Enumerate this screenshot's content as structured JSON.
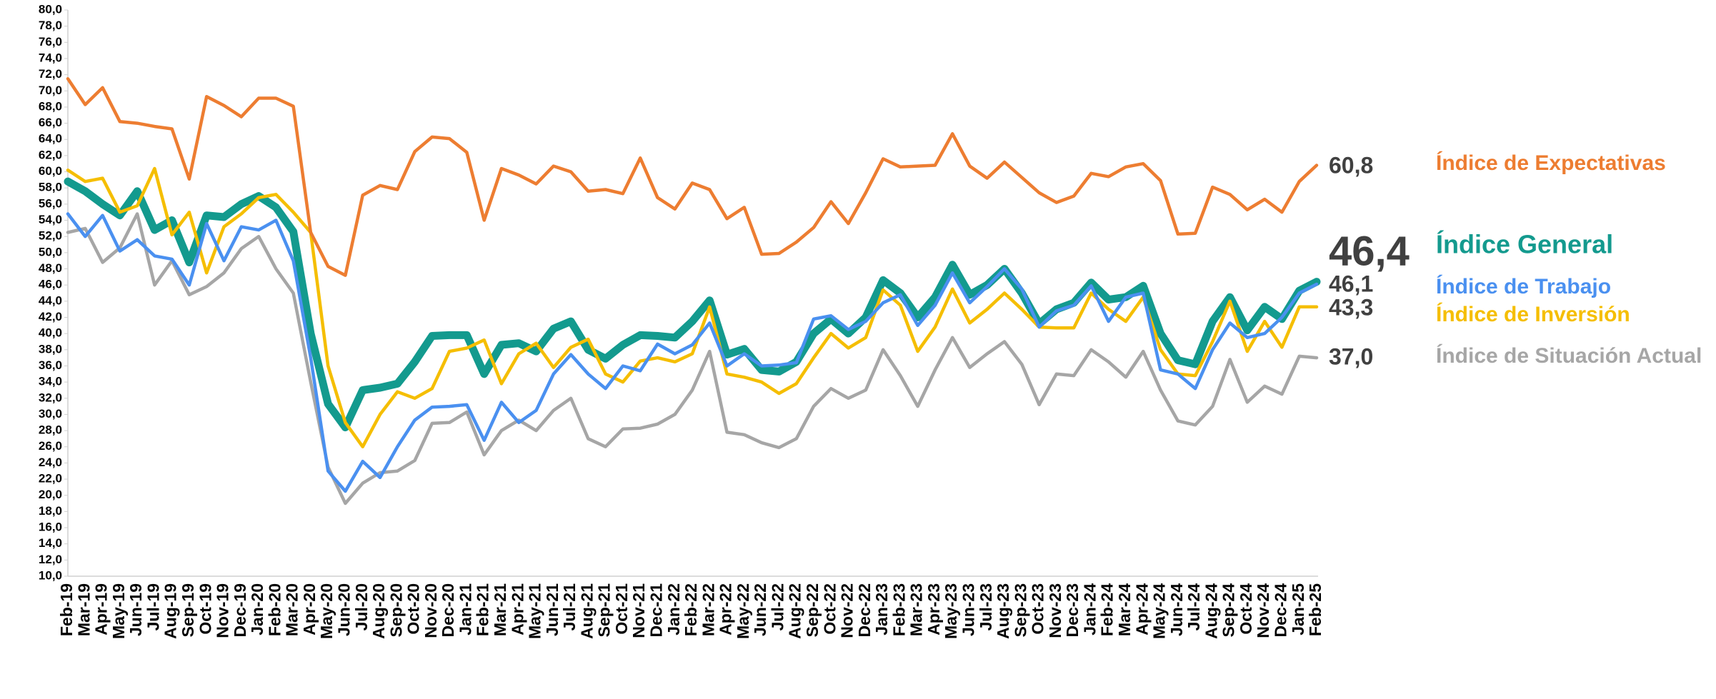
{
  "chart_data": {
    "type": "line",
    "categories": [
      "Feb-19",
      "Mar-19",
      "Apr-19",
      "May-19",
      "Jun-19",
      "Jul-19",
      "Aug-19",
      "Sep-19",
      "Oct-19",
      "Nov-19",
      "Dec-19",
      "Jan-20",
      "Feb-20",
      "Mar-20",
      "Apr-20",
      "May-20",
      "Jun-20",
      "Jul-20",
      "Aug-20",
      "Sep-20",
      "Oct-20",
      "Nov-20",
      "Dec-20",
      "Jan-21",
      "Feb-21",
      "Mar-21",
      "Apr-21",
      "May-21",
      "Jun-21",
      "Jul-21",
      "Aug-21",
      "Sep-21",
      "Oct-21",
      "Nov-21",
      "Dec-21",
      "Jan-22",
      "Feb-22",
      "Mar-22",
      "Apr-22",
      "May-22",
      "Jun-22",
      "Jul-22",
      "Aug-22",
      "Sep-22",
      "Oct-22",
      "Nov-22",
      "Dec-22",
      "Jan-23",
      "Feb-23",
      "Mar-23",
      "Apr-23",
      "May-23",
      "Jun-23",
      "Jul-23",
      "Aug-23",
      "Sep-23",
      "Oct-23",
      "Nov-23",
      "Dec-23",
      "Jan-24",
      "Feb-24",
      "Mar-24",
      "Apr-24",
      "May-24",
      "Jun-24",
      "Jul-24",
      "Aug-24",
      "Sep-24",
      "Oct-24",
      "Nov-24",
      "Dec-24",
      "Jan-25",
      "Feb-25"
    ],
    "series": [
      {
        "name": "Índice de Expectativas",
        "color": "#ED7D31",
        "values": [
          71.5,
          68.3,
          70.4,
          66.2,
          66.0,
          65.6,
          65.3,
          59.1,
          69.3,
          68.2,
          66.8,
          69.1,
          69.1,
          68.1,
          52.5,
          48.3,
          47.2,
          57.1,
          58.3,
          57.8,
          62.5,
          64.3,
          64.1,
          62.4,
          54.0,
          60.4,
          59.6,
          58.5,
          60.7,
          60.0,
          57.6,
          57.8,
          57.3,
          61.7,
          56.8,
          55.4,
          58.6,
          57.8,
          54.2,
          55.6,
          49.8,
          49.9,
          51.3,
          53.1,
          56.3,
          53.6,
          57.4,
          61.6,
          60.6,
          60.7,
          60.8,
          64.7,
          60.7,
          59.2,
          61.2,
          59.3,
          57.4,
          56.2,
          57.0,
          59.8,
          59.4,
          60.6,
          61.0,
          58.9,
          52.3,
          52.4,
          58.1,
          57.2,
          55.3,
          56.6,
          55.0,
          58.8,
          60.8
        ],
        "value_labels": [
          null,
          null,
          null,
          null,
          null,
          null,
          null,
          null,
          null,
          null,
          null,
          null,
          null,
          null,
          null,
          null,
          null,
          null,
          null,
          null,
          null,
          null,
          null,
          null,
          null,
          null,
          null,
          null,
          null,
          null,
          null,
          null,
          null,
          null,
          null,
          null,
          null,
          null,
          null,
          null,
          null,
          null,
          null,
          null,
          null,
          null,
          null,
          null,
          null,
          null,
          null,
          null,
          null,
          null,
          null,
          null,
          null,
          null,
          null,
          null,
          null,
          null,
          null,
          null,
          null,
          null,
          null,
          null,
          null,
          null,
          null,
          null,
          "60,8"
        ]
      },
      {
        "name": "Índice General",
        "color": "#139A8E",
        "values": [
          58.8,
          57.6,
          56.0,
          54.6,
          57.6,
          52.8,
          54.0,
          48.8,
          54.6,
          54.4,
          56.0,
          57.0,
          55.6,
          52.6,
          40.0,
          31.3,
          28.4,
          33.0,
          33.3,
          33.8,
          36.5,
          39.7,
          39.8,
          39.8,
          35.0,
          38.6,
          38.8,
          37.8,
          40.6,
          41.5,
          38.0,
          36.9,
          38.6,
          39.8,
          39.7,
          39.5,
          41.5,
          44.1,
          37.4,
          38.1,
          35.5,
          35.3,
          36.5,
          40.0,
          41.8,
          40.0,
          42.0,
          46.6,
          45.0,
          42.0,
          44.5,
          48.5,
          44.8,
          46.0,
          48.0,
          45.0,
          41.2,
          43.0,
          43.8,
          46.3,
          44.2,
          44.5,
          45.9,
          40.0,
          36.7,
          36.2,
          41.5,
          44.5,
          40.4,
          43.3,
          41.8,
          45.3,
          46.4
        ],
        "value_labels": [
          null,
          null,
          null,
          null,
          null,
          null,
          null,
          null,
          null,
          null,
          null,
          null,
          null,
          null,
          null,
          null,
          null,
          null,
          null,
          null,
          null,
          null,
          null,
          null,
          null,
          null,
          null,
          null,
          null,
          null,
          null,
          null,
          null,
          null,
          null,
          null,
          null,
          null,
          null,
          null,
          null,
          null,
          null,
          null,
          null,
          null,
          null,
          null,
          null,
          null,
          null,
          null,
          null,
          null,
          null,
          null,
          null,
          null,
          null,
          null,
          null,
          null,
          null,
          null,
          null,
          null,
          null,
          null,
          null,
          null,
          null,
          null,
          "46,4"
        ]
      },
      {
        "name": "Índice de Trabajo",
        "color": "#4A90F0",
        "values": [
          54.8,
          52.0,
          54.6,
          50.2,
          51.6,
          49.6,
          49.2,
          46.0,
          53.6,
          49.0,
          53.2,
          52.8,
          54.0,
          49.0,
          37.0,
          23.0,
          20.5,
          24.2,
          22.2,
          26.0,
          29.3,
          30.9,
          31.0,
          31.2,
          26.8,
          31.5,
          29.0,
          30.5,
          35.0,
          37.4,
          35.0,
          33.2,
          36.0,
          35.4,
          38.7,
          37.5,
          38.6,
          41.3,
          36.0,
          37.5,
          36.0,
          36.1,
          36.4,
          41.8,
          42.2,
          40.5,
          41.5,
          43.8,
          44.8,
          41.0,
          43.5,
          47.5,
          43.8,
          45.8,
          48.0,
          45.5,
          40.8,
          42.8,
          43.5,
          45.9,
          41.5,
          44.5,
          45.0,
          35.5,
          35.0,
          33.2,
          38.0,
          41.3,
          39.5,
          40.0,
          42.0,
          45.0,
          46.1
        ],
        "value_labels": [
          null,
          null,
          null,
          null,
          null,
          null,
          null,
          null,
          null,
          null,
          null,
          null,
          null,
          null,
          null,
          null,
          null,
          null,
          null,
          null,
          null,
          null,
          null,
          null,
          null,
          null,
          null,
          null,
          null,
          null,
          null,
          null,
          null,
          null,
          null,
          null,
          null,
          null,
          null,
          null,
          null,
          null,
          null,
          null,
          null,
          null,
          null,
          null,
          null,
          null,
          null,
          null,
          null,
          null,
          null,
          null,
          null,
          null,
          null,
          null,
          null,
          null,
          null,
          null,
          null,
          null,
          null,
          null,
          null,
          null,
          null,
          null,
          "46,1"
        ]
      },
      {
        "name": "Índice de Inversión",
        "color": "#F5BE00",
        "values": [
          60.2,
          58.8,
          59.2,
          55.0,
          55.8,
          60.4,
          52.2,
          55.0,
          47.5,
          53.2,
          54.8,
          56.8,
          57.2,
          55.0,
          52.5,
          36.0,
          29.0,
          26.0,
          30.0,
          32.8,
          32.0,
          33.2,
          37.8,
          38.2,
          39.2,
          33.8,
          37.5,
          38.8,
          35.8,
          38.3,
          39.3,
          35.0,
          34.0,
          36.6,
          37.0,
          36.5,
          37.5,
          43.3,
          35.0,
          34.6,
          34.0,
          32.6,
          33.8,
          37.0,
          40.0,
          38.2,
          39.5,
          45.4,
          43.5,
          37.8,
          40.8,
          45.5,
          41.3,
          43.0,
          45.0,
          43.0,
          40.8,
          40.7,
          40.7,
          45.0,
          43.0,
          41.5,
          44.5,
          38.0,
          35.0,
          34.8,
          39.0,
          44.0,
          37.8,
          41.5,
          38.3,
          43.3,
          43.3
        ],
        "value_labels": [
          null,
          null,
          null,
          null,
          null,
          null,
          null,
          null,
          null,
          null,
          null,
          null,
          null,
          null,
          null,
          null,
          null,
          null,
          null,
          null,
          null,
          null,
          null,
          null,
          null,
          null,
          null,
          null,
          null,
          null,
          null,
          null,
          null,
          null,
          null,
          null,
          null,
          null,
          null,
          null,
          null,
          null,
          null,
          null,
          null,
          null,
          null,
          null,
          null,
          null,
          null,
          null,
          null,
          null,
          null,
          null,
          null,
          null,
          null,
          null,
          null,
          null,
          null,
          null,
          null,
          null,
          null,
          null,
          null,
          null,
          null,
          null,
          "43,3"
        ]
      },
      {
        "name": "Índice de Situación Actual",
        "color": "#A6A6A6",
        "values": [
          52.5,
          53.0,
          48.8,
          50.6,
          54.8,
          46.0,
          49.0,
          44.8,
          45.8,
          47.5,
          50.5,
          52.0,
          48.0,
          45.0,
          34.0,
          23.5,
          19.0,
          21.5,
          22.8,
          23.0,
          24.3,
          28.9,
          29.0,
          30.3,
          25.0,
          28.0,
          29.3,
          28.0,
          30.5,
          32.0,
          27.0,
          26.0,
          28.2,
          28.3,
          28.8,
          30.0,
          33.0,
          37.8,
          27.8,
          27.5,
          26.5,
          25.9,
          27.0,
          31.0,
          33.2,
          32.0,
          33.0,
          38.0,
          34.8,
          31.0,
          35.5,
          39.5,
          35.8,
          37.5,
          39.0,
          36.2,
          31.2,
          35.0,
          34.8,
          38.0,
          36.5,
          34.6,
          37.8,
          33.0,
          29.2,
          28.7,
          31.0,
          36.8,
          31.5,
          33.5,
          32.5,
          37.2,
          37.0
        ],
        "value_labels": [
          null,
          null,
          null,
          null,
          null,
          null,
          null,
          null,
          null,
          null,
          null,
          null,
          null,
          null,
          null,
          null,
          null,
          null,
          null,
          null,
          null,
          null,
          null,
          null,
          null,
          null,
          null,
          null,
          null,
          null,
          null,
          null,
          null,
          null,
          null,
          null,
          null,
          null,
          null,
          null,
          null,
          null,
          null,
          null,
          null,
          null,
          null,
          null,
          null,
          null,
          null,
          null,
          null,
          null,
          null,
          null,
          null,
          null,
          null,
          null,
          null,
          null,
          null,
          null,
          null,
          null,
          null,
          null,
          null,
          null,
          null,
          null,
          "37,0"
        ]
      }
    ],
    "ylim": [
      10,
      80
    ],
    "yticks": [
      {
        "value": 10,
        "label": "10,0"
      },
      {
        "value": 12,
        "label": "12,0"
      },
      {
        "value": 14,
        "label": "14,0"
      },
      {
        "value": 16,
        "label": "16,0"
      },
      {
        "value": 18,
        "label": "18,0"
      },
      {
        "value": 20,
        "label": "20,0"
      },
      {
        "value": 22,
        "label": "22,0"
      },
      {
        "value": 24,
        "label": "24,0"
      },
      {
        "value": 26,
        "label": "26,0"
      },
      {
        "value": 28,
        "label": "28,0"
      },
      {
        "value": 30,
        "label": "30,0"
      },
      {
        "value": 32,
        "label": "32,0"
      },
      {
        "value": 34,
        "label": "34,0"
      },
      {
        "value": 36,
        "label": "36,0"
      },
      {
        "value": 38,
        "label": "38,0"
      },
      {
        "value": 40,
        "label": "40,0"
      },
      {
        "value": 42,
        "label": "42,0"
      },
      {
        "value": 44,
        "label": "44,0"
      },
      {
        "value": 46,
        "label": "46,0"
      },
      {
        "value": 48,
        "label": "48,0"
      },
      {
        "value": 50,
        "label": "50,0"
      },
      {
        "value": 52,
        "label": "52,0"
      },
      {
        "value": 54,
        "label": "54,0"
      },
      {
        "value": 56,
        "label": "56,0"
      },
      {
        "value": 58,
        "label": "58,0"
      },
      {
        "value": 60,
        "label": "60,0"
      },
      {
        "value": 62,
        "label": "62,0"
      },
      {
        "value": 64,
        "label": "64,0"
      },
      {
        "value": 66,
        "label": "66,0"
      },
      {
        "value": 68,
        "label": "68,0"
      },
      {
        "value": 70,
        "label": "70,0"
      },
      {
        "value": 72,
        "label": "72,0"
      },
      {
        "value": 74,
        "label": "74,0"
      },
      {
        "value": 76,
        "label": "76,0"
      },
      {
        "value": 78,
        "label": "78,0"
      },
      {
        "value": 80,
        "label": "80,0"
      }
    ],
    "grid": false
  }
}
